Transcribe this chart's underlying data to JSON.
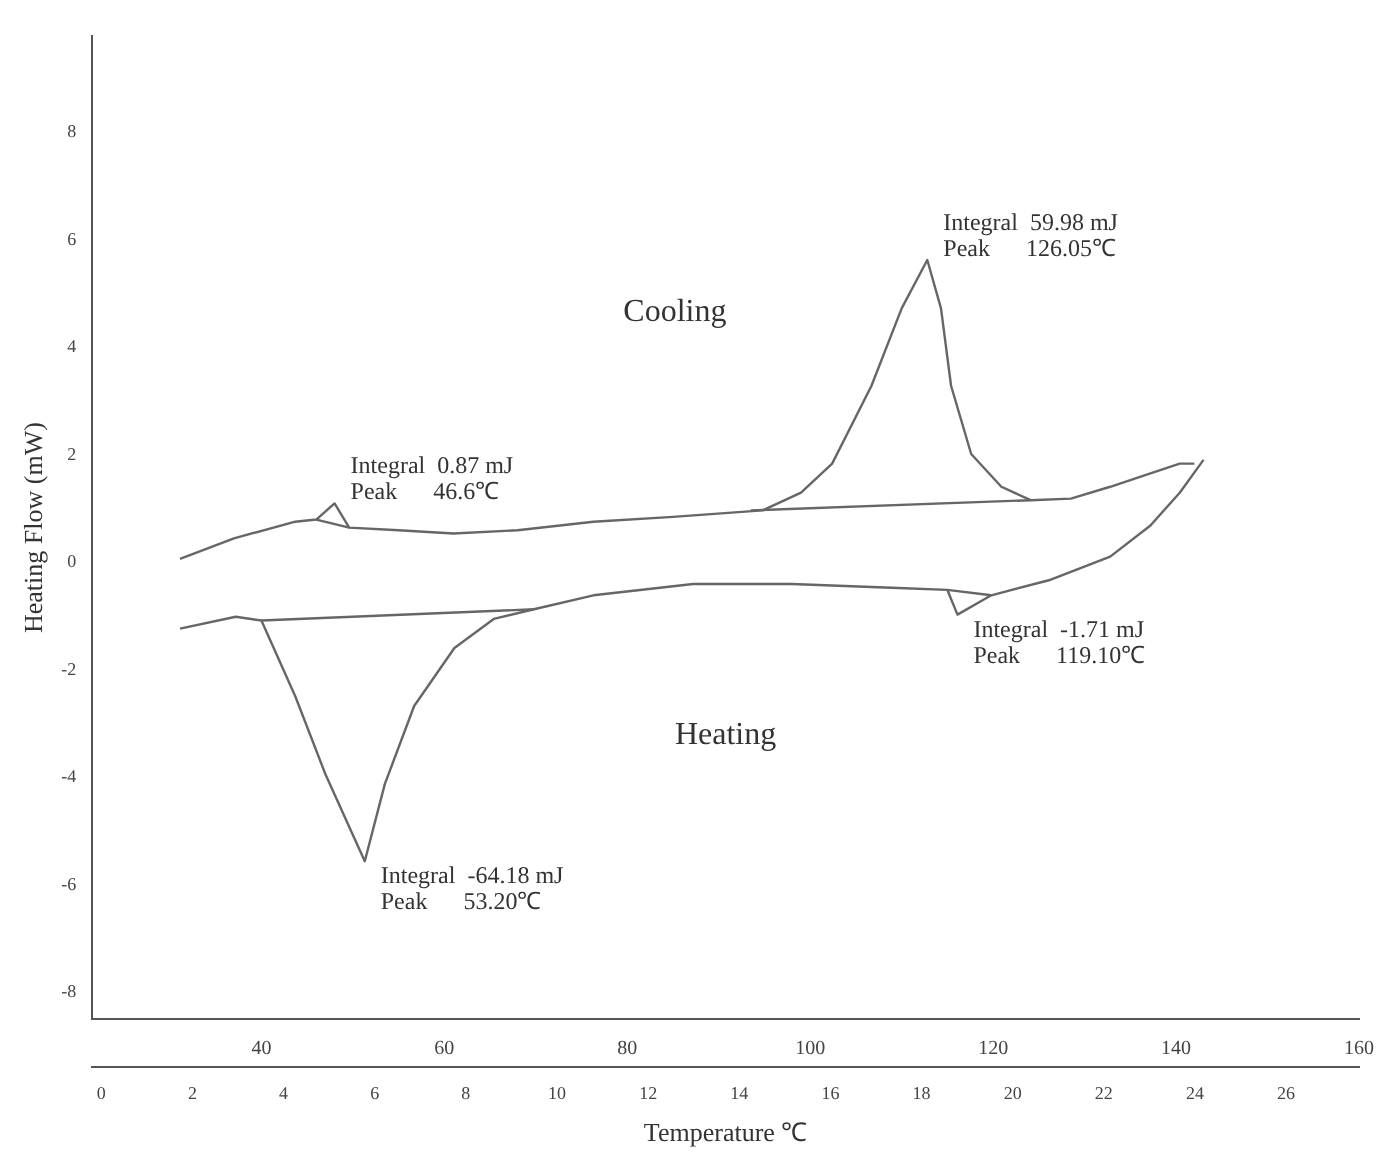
{
  "chart_data": {
    "type": "line",
    "xlabel": "Temperature ℃",
    "ylabel": "Heating Flow (mW)",
    "xlim": [
      21.5,
      160
    ],
    "xticks": [
      40,
      60,
      80,
      100,
      120,
      140,
      160
    ],
    "x2lim": [
      -0.2,
      27.6
    ],
    "x2ticks": [
      0,
      2,
      4,
      6,
      8,
      10,
      12,
      14,
      16,
      18,
      20,
      22,
      24,
      26
    ],
    "ylim": [
      -8.5,
      9.8
    ],
    "yticks": [
      -8,
      -6,
      -4,
      -2,
      0,
      2,
      4,
      6,
      8
    ],
    "grid": false,
    "legend": false,
    "marker": "none",
    "line_style": "solid",
    "series": [
      {
        "color": "#666666",
        "x": [
          31.1,
          37,
          43.7,
          46,
          48,
          49.6,
          55,
          61,
          68,
          76.3,
          85,
          94.8,
          99,
          102.4,
          106.7,
          110,
          112.8,
          114.3,
          115.4,
          117.6,
          120.9,
          124.1,
          128.5,
          132.8,
          137.2,
          140.4,
          142
        ],
        "values": [
          0.07,
          0.45,
          0.76,
          0.8,
          1.1,
          0.65,
          0.6,
          0.54,
          0.6,
          0.76,
          0.85,
          0.97,
          1.3,
          1.84,
          3.29,
          4.73,
          5.63,
          4.73,
          3.29,
          2.02,
          1.41,
          1.16,
          1.19,
          1.41,
          1.66,
          1.84,
          1.84
        ]
      },
      {
        "color": "#666666",
        "x": [
          31.1,
          37.2,
          40,
          43.7,
          47,
          51.3,
          53.5,
          56.7,
          61.1,
          65.4,
          69.8,
          76.3,
          87.2,
          98,
          108.9,
          115,
          116.1,
          119.8,
          126.3,
          132.8,
          137.2,
          140.4,
          143
        ],
        "values": [
          -1.23,
          -1.01,
          -1.08,
          -2.49,
          -3.94,
          -5.56,
          -4.12,
          -2.67,
          -1.59,
          -1.05,
          -0.87,
          -0.61,
          -0.4,
          -0.4,
          -0.47,
          -0.51,
          -0.97,
          -0.61,
          -0.32,
          0.11,
          0.69,
          1.3,
          1.91
        ]
      },
      {
        "color": "#666666",
        "x": [
          93.5,
          124.1
        ],
        "values": [
          0.97,
          1.16
        ]
      },
      {
        "color": "#666666",
        "x": [
          40,
          69.8
        ],
        "values": [
          -1.08,
          -0.87
        ]
      },
      {
        "color": "#666666",
        "x": [
          46,
          49.6
        ],
        "values": [
          0.8,
          0.65
        ]
      },
      {
        "color": "#666666",
        "x": [
          115,
          119.8
        ],
        "values": [
          -0.51,
          -0.61
        ]
      }
    ],
    "annotations": [
      "Cooling",
      "Heating",
      {
        "text": "Integral  0.87 mJ\nPeak      46.6℃",
        "x": 48,
        "y": 1.1
      },
      {
        "text": "Integral  59.98 mJ\nPeak      126.05℃",
        "x": 112.8,
        "y": 5.63
      },
      {
        "text": "Integral  -1.71 mJ\nPeak      119.10℃",
        "x": 116.1,
        "y": -0.97
      },
      {
        "text": "Integral  -64.18 mJ\nPeak      53.20℃",
        "x": 51.3,
        "y": -5.56
      }
    ]
  }
}
